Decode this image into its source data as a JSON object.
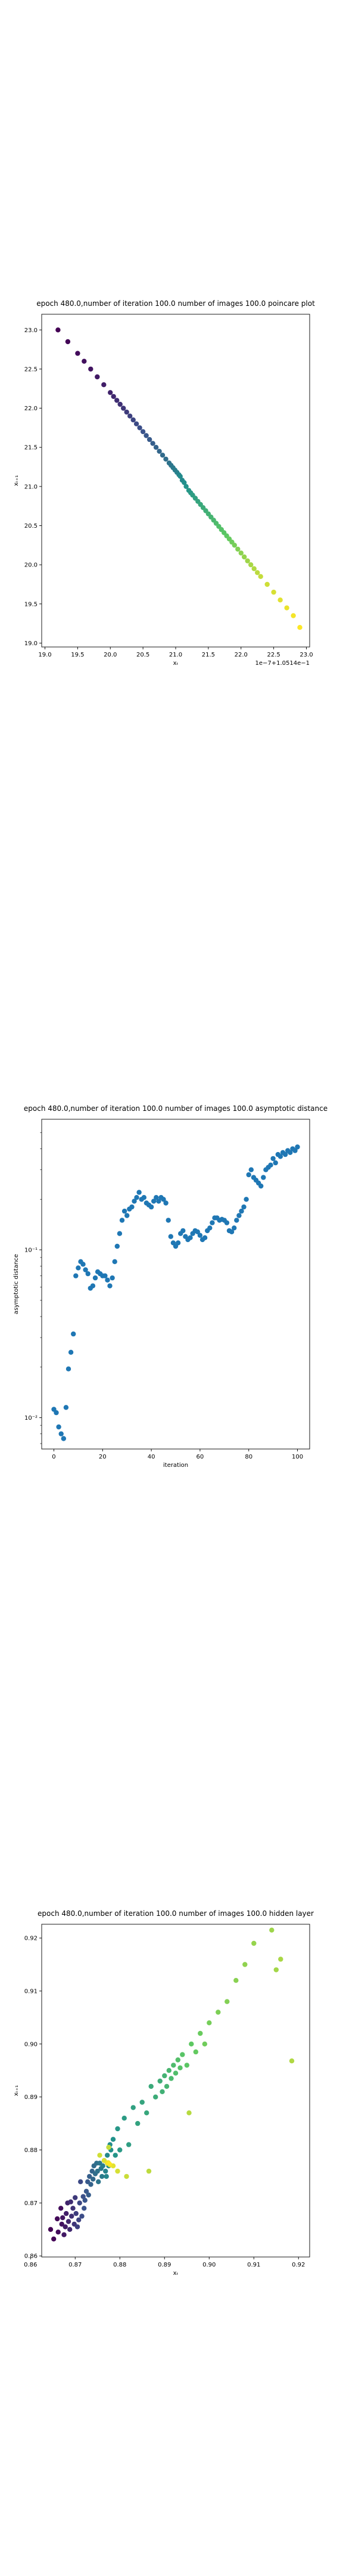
{
  "figure": {
    "background": "#ffffff",
    "colormap": [
      "#440154",
      "#3b528b",
      "#21918c",
      "#5ec962",
      "#fde725"
    ]
  },
  "chart_data": [
    {
      "type": "scatter",
      "title": "epoch 480.0,number of iteration 100.0 number of images 100.0 poincare plot",
      "xlabel": "xₜ",
      "ylabel": "xₜ₊₁",
      "offset_label": "1e−7+1.0514e−1",
      "xlim": [
        18.95,
        23.05
      ],
      "ylim": [
        18.95,
        23.2
      ],
      "xticks": [
        19.0,
        19.5,
        20.0,
        20.5,
        21.0,
        21.5,
        22.0,
        22.5,
        23.0
      ],
      "xtick_labels": [
        "19.0",
        "19.5",
        "20.0",
        "20.5",
        "21.0",
        "21.5",
        "22.0",
        "22.5",
        "23.0"
      ],
      "yticks": [
        19.0,
        19.5,
        20.0,
        20.5,
        21.0,
        21.5,
        22.0,
        22.5,
        23.0
      ],
      "ytick_labels": [
        "19.0",
        "19.5",
        "20.0",
        "20.5",
        "21.0",
        "21.5",
        "22.0",
        "22.5",
        "23.0"
      ],
      "grid": false,
      "color_by": "index",
      "points": [
        [
          19.2,
          23.0
        ],
        [
          19.35,
          22.85
        ],
        [
          19.5,
          22.7
        ],
        [
          19.6,
          22.6
        ],
        [
          19.7,
          22.5
        ],
        [
          19.8,
          22.4
        ],
        [
          19.9,
          22.3
        ],
        [
          20.0,
          22.2
        ],
        [
          20.05,
          22.15
        ],
        [
          20.1,
          22.1
        ],
        [
          20.15,
          22.05
        ],
        [
          20.2,
          22.0
        ],
        [
          20.25,
          21.95
        ],
        [
          20.3,
          21.9
        ],
        [
          20.35,
          21.85
        ],
        [
          20.4,
          21.8
        ],
        [
          20.45,
          21.75
        ],
        [
          20.5,
          21.7
        ],
        [
          20.55,
          21.65
        ],
        [
          20.6,
          21.6
        ],
        [
          20.65,
          21.55
        ],
        [
          20.7,
          21.5
        ],
        [
          20.75,
          21.45
        ],
        [
          20.8,
          21.4
        ],
        [
          20.85,
          21.35
        ],
        [
          20.9,
          21.3
        ],
        [
          20.93,
          21.27
        ],
        [
          20.96,
          21.24
        ],
        [
          20.99,
          21.21
        ],
        [
          21.02,
          21.18
        ],
        [
          21.05,
          21.15
        ],
        [
          21.1,
          21.08
        ],
        [
          21.07,
          21.13
        ],
        [
          21.13,
          21.05
        ],
        [
          21.16,
          21.0
        ],
        [
          21.2,
          20.95
        ],
        [
          21.23,
          20.92
        ],
        [
          21.26,
          20.89
        ],
        [
          21.3,
          20.85
        ],
        [
          21.34,
          20.81
        ],
        [
          21.38,
          20.77
        ],
        [
          21.42,
          20.73
        ],
        [
          21.46,
          20.69
        ],
        [
          21.5,
          20.65
        ],
        [
          21.54,
          20.61
        ],
        [
          21.58,
          20.57
        ],
        [
          21.62,
          20.53
        ],
        [
          21.66,
          20.49
        ],
        [
          21.7,
          20.45
        ],
        [
          21.74,
          20.41
        ],
        [
          21.78,
          20.37
        ],
        [
          21.82,
          20.33
        ],
        [
          21.86,
          20.29
        ],
        [
          21.9,
          20.25
        ],
        [
          21.95,
          20.2
        ],
        [
          22.0,
          20.15
        ],
        [
          22.05,
          20.1
        ],
        [
          22.1,
          20.05
        ],
        [
          22.15,
          20.0
        ],
        [
          22.2,
          19.95
        ],
        [
          22.25,
          19.9
        ],
        [
          22.3,
          19.85
        ],
        [
          22.4,
          19.75
        ],
        [
          22.5,
          19.65
        ],
        [
          22.6,
          19.55
        ],
        [
          22.7,
          19.45
        ],
        [
          22.8,
          19.35
        ],
        [
          22.9,
          19.2
        ]
      ]
    },
    {
      "type": "scatter",
      "title": "epoch 480.0,number of iteration 100.0  number of images 100.0 asymptotic distance",
      "xlabel": "iteration",
      "ylabel": "asymptotic distance",
      "yscale": "log",
      "xlim": [
        -5,
        105
      ],
      "ylim": [
        0.0065,
        0.6
      ],
      "xticks": [
        0,
        20,
        40,
        60,
        80,
        100
      ],
      "xtick_labels": [
        "0",
        "20",
        "40",
        "60",
        "80",
        "100"
      ],
      "yticks": [
        0.01,
        0.1
      ],
      "ytick_labels": [
        "10⁻²",
        "10⁻¹"
      ],
      "grid": false,
      "color": "#1f77b4",
      "x": [
        0,
        1,
        2,
        3,
        4,
        5,
        6,
        7,
        8,
        9,
        10,
        11,
        12,
        13,
        14,
        15,
        16,
        17,
        18,
        19,
        20,
        21,
        22,
        23,
        24,
        25,
        26,
        27,
        28,
        29,
        30,
        31,
        32,
        33,
        34,
        35,
        36,
        37,
        38,
        39,
        40,
        41,
        42,
        43,
        44,
        45,
        46,
        47,
        48,
        49,
        50,
        51,
        52,
        53,
        54,
        55,
        56,
        57,
        58,
        59,
        60,
        61,
        62,
        63,
        64,
        65,
        66,
        67,
        68,
        69,
        70,
        71,
        72,
        73,
        74,
        75,
        76,
        77,
        78,
        79,
        80,
        81,
        82,
        83,
        84,
        85,
        86,
        87,
        88,
        89,
        90,
        91,
        92,
        93,
        94,
        95,
        96,
        97,
        98,
        99,
        100
      ],
      "y": [
        0.0112,
        0.0107,
        0.0088,
        0.008,
        0.0075,
        0.0115,
        0.0195,
        0.0245,
        0.0315,
        0.07,
        0.078,
        0.085,
        0.082,
        0.076,
        0.072,
        0.059,
        0.061,
        0.068,
        0.074,
        0.072,
        0.07,
        0.07,
        0.066,
        0.061,
        0.068,
        0.085,
        0.105,
        0.125,
        0.15,
        0.17,
        0.16,
        0.175,
        0.18,
        0.195,
        0.205,
        0.22,
        0.2,
        0.205,
        0.19,
        0.185,
        0.18,
        0.195,
        0.205,
        0.195,
        0.205,
        0.2,
        0.19,
        0.15,
        0.12,
        0.11,
        0.105,
        0.11,
        0.125,
        0.13,
        0.12,
        0.115,
        0.118,
        0.125,
        0.13,
        0.128,
        0.122,
        0.115,
        0.118,
        0.13,
        0.135,
        0.145,
        0.155,
        0.155,
        0.15,
        0.152,
        0.15,
        0.145,
        0.13,
        0.128,
        0.135,
        0.15,
        0.16,
        0.17,
        0.18,
        0.2,
        0.28,
        0.3,
        0.27,
        0.26,
        0.25,
        0.24,
        0.27,
        0.3,
        0.31,
        0.32,
        0.35,
        0.33,
        0.37,
        0.36,
        0.38,
        0.37,
        0.39,
        0.38,
        0.4,
        0.39,
        0.41
      ]
    },
    {
      "type": "scatter",
      "title": "epoch 480.0,number of iteration 100.0  number of images 100.0 hidden layer",
      "xlabel": "xₜ",
      "ylabel": "xₜ₊₁",
      "xlim": [
        0.8625,
        0.9225
      ],
      "ylim": [
        0.8598,
        0.9226
      ],
      "xticks": [
        0.86,
        0.87,
        0.88,
        0.89,
        0.9,
        0.91,
        0.92
      ],
      "xtick_labels": [
        "0.86",
        "0.87",
        "0.88",
        "0.89",
        "0.90",
        "0.91",
        "0.92"
      ],
      "yticks": [
        0.86,
        0.87,
        0.88,
        0.89,
        0.9,
        0.91,
        0.92
      ],
      "ytick_labels": [
        "0.86",
        "0.87",
        "0.88",
        "0.89",
        "0.90",
        "0.91",
        "0.92"
      ],
      "grid": false,
      "color_by": "index",
      "points": [
        [
          0.8645,
          0.865
        ],
        [
          0.8652,
          0.8632
        ],
        [
          0.866,
          0.867
        ],
        [
          0.8662,
          0.8645
        ],
        [
          0.8668,
          0.869
        ],
        [
          0.867,
          0.866
        ],
        [
          0.8672,
          0.8672
        ],
        [
          0.8675,
          0.864
        ],
        [
          0.8678,
          0.8655
        ],
        [
          0.868,
          0.868
        ],
        [
          0.8683,
          0.87
        ],
        [
          0.8685,
          0.8665
        ],
        [
          0.8688,
          0.865
        ],
        [
          0.869,
          0.8702
        ],
        [
          0.8692,
          0.8675
        ],
        [
          0.8695,
          0.869
        ],
        [
          0.8698,
          0.866
        ],
        [
          0.87,
          0.871
        ],
        [
          0.8702,
          0.868
        ],
        [
          0.8705,
          0.8655
        ],
        [
          0.8708,
          0.8668
        ],
        [
          0.871,
          0.87
        ],
        [
          0.8712,
          0.874
        ],
        [
          0.8715,
          0.8675
        ],
        [
          0.8718,
          0.8712
        ],
        [
          0.872,
          0.869
        ],
        [
          0.8722,
          0.8705
        ],
        [
          0.8725,
          0.8722
        ],
        [
          0.8728,
          0.874
        ],
        [
          0.873,
          0.8715
        ],
        [
          0.8732,
          0.875
        ],
        [
          0.8735,
          0.8735
        ],
        [
          0.8738,
          0.876
        ],
        [
          0.874,
          0.8745
        ],
        [
          0.8742,
          0.877
        ],
        [
          0.8745,
          0.8755
        ],
        [
          0.8748,
          0.8775
        ],
        [
          0.875,
          0.876
        ],
        [
          0.8752,
          0.874
        ],
        [
          0.8755,
          0.8775
        ],
        [
          0.8758,
          0.8765
        ],
        [
          0.876,
          0.875
        ],
        [
          0.8762,
          0.877
        ],
        [
          0.8765,
          0.878
        ],
        [
          0.8768,
          0.876
        ],
        [
          0.877,
          0.875
        ],
        [
          0.8772,
          0.879
        ],
        [
          0.8775,
          0.877
        ],
        [
          0.8778,
          0.881
        ],
        [
          0.878,
          0.88
        ],
        [
          0.8785,
          0.882
        ],
        [
          0.879,
          0.879
        ],
        [
          0.8795,
          0.884
        ],
        [
          0.88,
          0.88
        ],
        [
          0.881,
          0.886
        ],
        [
          0.882,
          0.881
        ],
        [
          0.883,
          0.888
        ],
        [
          0.884,
          0.885
        ],
        [
          0.885,
          0.889
        ],
        [
          0.886,
          0.887
        ],
        [
          0.887,
          0.892
        ],
        [
          0.888,
          0.89
        ],
        [
          0.889,
          0.893
        ],
        [
          0.8895,
          0.891
        ],
        [
          0.89,
          0.894
        ],
        [
          0.8905,
          0.892
        ],
        [
          0.891,
          0.895
        ],
        [
          0.8915,
          0.8935
        ],
        [
          0.892,
          0.896
        ],
        [
          0.8925,
          0.8945
        ],
        [
          0.893,
          0.897
        ],
        [
          0.8935,
          0.8955
        ],
        [
          0.894,
          0.898
        ],
        [
          0.895,
          0.896
        ],
        [
          0.896,
          0.9
        ],
        [
          0.897,
          0.8985
        ],
        [
          0.898,
          0.902
        ],
        [
          0.899,
          0.9
        ],
        [
          0.9,
          0.904
        ],
        [
          0.902,
          0.906
        ],
        [
          0.904,
          0.908
        ],
        [
          0.906,
          0.912
        ],
        [
          0.908,
          0.915
        ],
        [
          0.91,
          0.919
        ],
        [
          0.914,
          0.9215
        ],
        [
          0.915,
          0.914
        ],
        [
          0.916,
          0.916
        ],
        [
          0.9185,
          0.8968
        ],
        [
          0.8955,
          0.887
        ],
        [
          0.8865,
          0.876
        ],
        [
          0.8775,
          0.8805
        ],
        [
          0.8815,
          0.875
        ],
        [
          0.8755,
          0.879
        ],
        [
          0.8795,
          0.876
        ],
        [
          0.8765,
          0.878
        ],
        [
          0.8785,
          0.877
        ],
        [
          0.8772,
          0.8775
        ],
        [
          0.8778,
          0.8772
        ],
        [
          0.8774,
          0.8776
        ],
        [
          0.8776,
          0.8774
        ]
      ]
    }
  ]
}
